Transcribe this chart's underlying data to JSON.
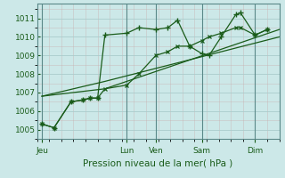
{
  "bg_color": "#cce8e8",
  "grid_color": "#aacccc",
  "line_color": "#1a5c1a",
  "xlabel": "Pression niveau de la mer( hPa )",
  "ylim": [
    1004.5,
    1011.8
  ],
  "yticks": [
    1005,
    1006,
    1007,
    1008,
    1009,
    1010,
    1011
  ],
  "xlim": [
    0,
    100
  ],
  "day_labels": [
    "Jeu",
    "Lun",
    "Ven",
    "Sam",
    "Dim"
  ],
  "day_positions": [
    2,
    37,
    49,
    68,
    90
  ],
  "vline_color": "#5a8888",
  "series1_x": [
    2,
    7,
    14,
    19,
    22,
    25,
    28,
    37,
    42,
    49,
    54,
    58,
    63,
    68,
    71,
    76,
    82,
    84,
    90,
    95
  ],
  "series1_y": [
    1005.3,
    1005.1,
    1006.5,
    1006.6,
    1006.7,
    1006.7,
    1010.1,
    1010.2,
    1010.5,
    1010.4,
    1010.5,
    1010.9,
    1009.5,
    1009.1,
    1009.0,
    1010.0,
    1011.2,
    1011.3,
    1010.1,
    1010.4
  ],
  "series2_x": [
    2,
    7,
    14,
    19,
    22,
    25,
    28,
    37,
    42,
    49,
    54,
    58,
    63,
    68,
    71,
    76,
    82,
    84,
    90,
    95
  ],
  "series2_y": [
    1005.3,
    1005.1,
    1006.5,
    1006.6,
    1006.7,
    1006.7,
    1007.2,
    1007.4,
    1008.0,
    1009.0,
    1009.2,
    1009.5,
    1009.5,
    1009.8,
    1010.0,
    1010.2,
    1010.5,
    1010.5,
    1010.1,
    1010.4
  ],
  "series3_x": [
    2,
    28,
    100
  ],
  "series3_y": [
    1006.8,
    1007.2,
    1010.4
  ],
  "series4_x": [
    2,
    28,
    100
  ],
  "series4_y": [
    1006.8,
    1007.6,
    1010.0
  ],
  "xlabel_fontsize": 7.5,
  "tick_fontsize": 6.5
}
